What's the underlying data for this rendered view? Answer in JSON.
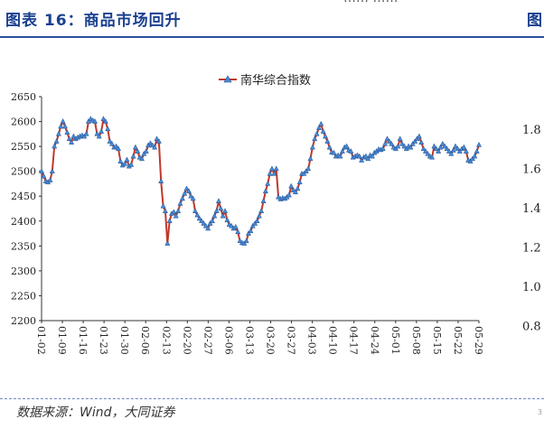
{
  "header": {
    "figure_title": "图表 16：商品市场回升",
    "right_marker": "图"
  },
  "source_note": "数据来源：Wind，大同证券",
  "page_mark": "3",
  "top_snippet": "…… ……",
  "chart_data": {
    "type": "line",
    "title": "",
    "legend_position": "top-center",
    "grid": false,
    "series": [
      {
        "name": "南华综合指数",
        "color": "#c0392b",
        "marker_color": "#4a8ad6",
        "values": [
          2500,
          2490,
          2480,
          2478,
          2482,
          2500,
          2550,
          2560,
          2575,
          2590,
          2600,
          2590,
          2578,
          2565,
          2558,
          2570,
          2565,
          2568,
          2570,
          2572,
          2570,
          2575,
          2600,
          2605,
          2602,
          2600,
          2575,
          2570,
          2580,
          2605,
          2600,
          2585,
          2560,
          2555,
          2548,
          2550,
          2545,
          2520,
          2512,
          2515,
          2523,
          2510,
          2513,
          2530,
          2548,
          2540,
          2528,
          2525,
          2535,
          2540,
          2552,
          2556,
          2552,
          2548,
          2565,
          2560,
          2480,
          2430,
          2420,
          2355,
          2400,
          2415,
          2418,
          2410,
          2420,
          2435,
          2445,
          2455,
          2465,
          2460,
          2450,
          2445,
          2420,
          2412,
          2405,
          2400,
          2395,
          2390,
          2385,
          2395,
          2400,
          2410,
          2420,
          2440,
          2425,
          2410,
          2420,
          2402,
          2393,
          2390,
          2385,
          2388,
          2378,
          2360,
          2356,
          2355,
          2360,
          2375,
          2380,
          2390,
          2395,
          2400,
          2410,
          2420,
          2440,
          2460,
          2475,
          2495,
          2505,
          2495,
          2505,
          2448,
          2444,
          2446,
          2445,
          2448,
          2452,
          2470,
          2462,
          2458,
          2465,
          2478,
          2495,
          2495,
          2500,
          2505,
          2525,
          2548,
          2565,
          2575,
          2587,
          2595,
          2580,
          2570,
          2560,
          2548,
          2538,
          2537,
          2530,
          2532,
          2530,
          2540,
          2548,
          2550,
          2542,
          2540,
          2528,
          2530,
          2532,
          2530,
          2522,
          2528,
          2530,
          2525,
          2532,
          2530,
          2537,
          2540,
          2544,
          2543,
          2545,
          2555,
          2565,
          2560,
          2555,
          2548,
          2545,
          2550,
          2565,
          2555,
          2550,
          2545,
          2550,
          2548,
          2555,
          2560,
          2565,
          2570,
          2558,
          2545,
          2540,
          2535,
          2530,
          2528,
          2550,
          2545,
          2540,
          2548,
          2555,
          2550,
          2545,
          2540,
          2535,
          2542,
          2550,
          2545,
          2540,
          2545,
          2548,
          2540,
          2522,
          2520,
          2525,
          2530,
          2540,
          2553
        ]
      }
    ],
    "y_axis_left": {
      "min": 2200,
      "max": 2650,
      "step": 50
    },
    "y_axis_right_visible_ticks": [
      "1.8",
      "1.6",
      "1.4",
      "1.2",
      "1.0",
      "0.8"
    ],
    "x_tick_labels": [
      "01-02",
      "01-09",
      "01-16",
      "01-23",
      "01-30",
      "02-06",
      "02-13",
      "02-20",
      "02-27",
      "03-06",
      "03-13",
      "03-20",
      "03-27",
      "04-03",
      "04-10",
      "04-17",
      "04-24",
      "05-01",
      "05-08",
      "05-15",
      "05-22",
      "05-29"
    ]
  }
}
